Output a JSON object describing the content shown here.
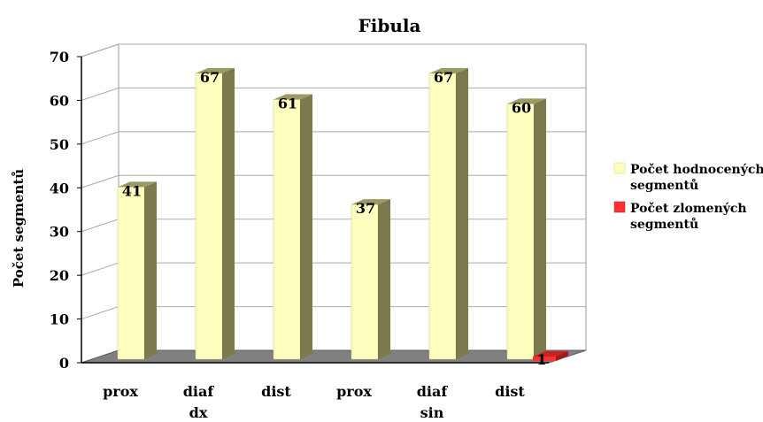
{
  "chart_data": {
    "type": "bar",
    "title": "Fibula",
    "ylabel": "Počet segmentů",
    "xlabel": "",
    "ylim": [
      0,
      70
    ],
    "yticks": [
      0,
      10,
      20,
      30,
      40,
      50,
      60,
      70
    ],
    "grid": true,
    "legend_position": "right",
    "categories": [
      "prox",
      "diaf",
      "dist",
      "prox",
      "diaf",
      "dist"
    ],
    "groups": [
      {
        "label": "dx",
        "categories": [
          "prox",
          "diaf",
          "dist"
        ]
      },
      {
        "label": "sin",
        "categories": [
          "prox",
          "diaf",
          "dist"
        ]
      }
    ],
    "series": [
      {
        "name": "Počet hodnocených segmentů",
        "color": "#ffffc0",
        "values": [
          41,
          67,
          61,
          37,
          67,
          60
        ]
      },
      {
        "name": "Počet zlomených segmentů",
        "color": "#ff3030",
        "values": [
          null,
          null,
          null,
          null,
          null,
          1
        ]
      }
    ],
    "data_labels": [
      "41",
      "67",
      "61",
      "37",
      "67",
      "60",
      "1"
    ]
  }
}
